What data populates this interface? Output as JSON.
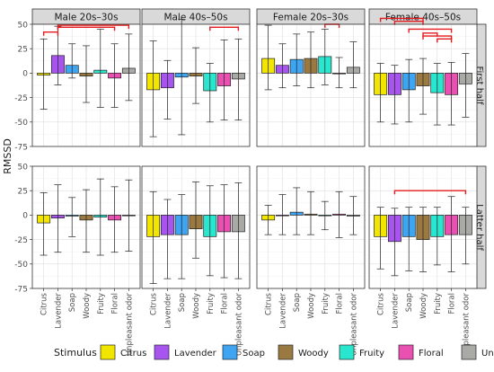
{
  "chart_data": {
    "type": "bar",
    "ylabel": "RMSSD",
    "ylim": [
      -75,
      50
    ],
    "yticks": [
      -75,
      -50,
      -25,
      0,
      25,
      50
    ],
    "grid": true,
    "legend_placement": "bottom",
    "legend_title": "Stimulus",
    "categories": [
      "Citrus",
      "Lavender",
      "Soap",
      "Woody",
      "Fruity",
      "Floral",
      "Unpleasant odor"
    ],
    "colors": {
      "Citrus": "#f2e600",
      "Lavender": "#a855f0",
      "Soap": "#3da5f2",
      "Woody": "#9a7a40",
      "Fruity": "#29e6cf",
      "Floral": "#ea4fb2",
      "Unpleasant odor": "#a9aaa6"
    },
    "bracket_color": "#e41a1c",
    "columns": [
      "Male 20s–30s",
      "Male 40s–50s",
      "Female 20s–30s",
      "Female 40s–50s"
    ],
    "rows": [
      "First half",
      "Latter half"
    ],
    "panels": [
      {
        "column": "Male 20s–30s",
        "row": "First half",
        "values": [
          -2,
          18,
          8,
          -3,
          3,
          -5,
          5
        ],
        "err_low": [
          -37,
          -12,
          -5,
          -30,
          -35,
          -35,
          -28
        ],
        "err_high": [
          35,
          48,
          30,
          28,
          45,
          30,
          40
        ],
        "brackets": [
          [
            0,
            1,
            42
          ],
          [
            1,
            5,
            47
          ],
          [
            1,
            6,
            49
          ]
        ]
      },
      {
        "column": "Male 40s–50s",
        "row": "First half",
        "values": [
          -17,
          -15,
          -4,
          -3,
          -18,
          -13,
          -6
        ],
        "err_low": [
          -65,
          -47,
          -63,
          -31,
          -50,
          -48,
          -48
        ],
        "err_high": [
          33,
          13,
          55,
          26,
          10,
          34,
          35
        ],
        "brackets": [
          [
            4,
            6,
            47
          ]
        ]
      },
      {
        "column": "Female 20s–30s",
        "row": "First half",
        "values": [
          15,
          8,
          14,
          15,
          17,
          0,
          6
        ],
        "err_low": [
          -17,
          -15,
          -13,
          -15,
          -12,
          -15,
          -15
        ],
        "err_high": [
          49,
          30,
          40,
          42,
          45,
          16,
          32
        ],
        "brackets": [
          [
            4,
            5,
            50
          ]
        ]
      },
      {
        "column": "Female 40s–50s",
        "row": "First half",
        "values": [
          -22,
          -22,
          -17,
          -13,
          -20,
          -22,
          -11
        ],
        "err_low": [
          -50,
          -52,
          -50,
          -42,
          -53,
          -53,
          -45
        ],
        "err_high": [
          10,
          8,
          14,
          15,
          10,
          11,
          20
        ],
        "brackets": [
          [
            0,
            3,
            56
          ],
          [
            1,
            3,
            53
          ],
          [
            2,
            5,
            45
          ],
          [
            3,
            4,
            41
          ],
          [
            3,
            5,
            38
          ],
          [
            4,
            5,
            35
          ]
        ]
      },
      {
        "column": "Male 20s–30s",
        "row": "Latter half",
        "values": [
          -8,
          -3,
          -1,
          -5,
          -2,
          -5,
          0
        ],
        "err_low": [
          -41,
          -38,
          -22,
          -38,
          -41,
          -38,
          -37
        ],
        "err_high": [
          23,
          31,
          18,
          26,
          37,
          29,
          36
        ],
        "brackets": []
      },
      {
        "column": "Male 40s–50s",
        "row": "Latter half",
        "values": [
          -22,
          -20,
          -20,
          -14,
          -22,
          -17,
          -17
        ],
        "err_low": [
          -70,
          -65,
          -65,
          -44,
          -62,
          -64,
          -65
        ],
        "err_high": [
          24,
          16,
          21,
          34,
          30,
          31,
          33
        ],
        "brackets": []
      },
      {
        "column": "Female 20s–30s",
        "row": "Latter half",
        "values": [
          -5,
          0,
          3,
          1,
          0,
          1,
          -1
        ],
        "err_low": [
          -20,
          -20,
          -20,
          -20,
          -15,
          -23,
          -20
        ],
        "err_high": [
          10,
          21,
          28,
          24,
          14,
          24,
          19
        ],
        "brackets": []
      },
      {
        "column": "Female 40s–50s",
        "row": "Latter half",
        "values": [
          -22,
          -27,
          -22,
          -25,
          -22,
          -20,
          -20
        ],
        "err_low": [
          -55,
          -62,
          -57,
          -58,
          -51,
          -58,
          -50
        ],
        "err_high": [
          8,
          7,
          8,
          8,
          8,
          19,
          8
        ],
        "brackets": [
          [
            1,
            6,
            25
          ]
        ]
      }
    ]
  }
}
